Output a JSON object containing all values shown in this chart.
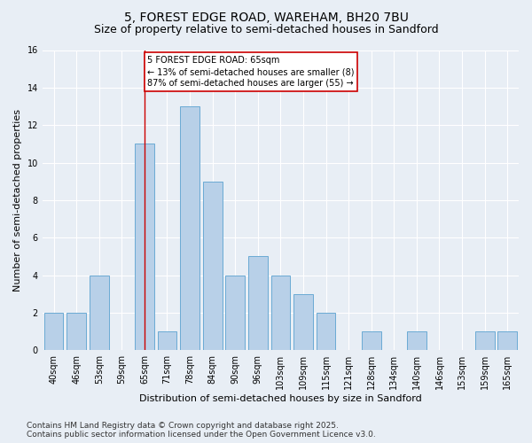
{
  "title1": "5, FOREST EDGE ROAD, WAREHAM, BH20 7BU",
  "title2": "Size of property relative to semi-detached houses in Sandford",
  "xlabel": "Distribution of semi-detached houses by size in Sandford",
  "ylabel": "Number of semi-detached properties",
  "categories": [
    "40sqm",
    "46sqm",
    "53sqm",
    "59sqm",
    "65sqm",
    "71sqm",
    "78sqm",
    "84sqm",
    "90sqm",
    "96sqm",
    "103sqm",
    "109sqm",
    "115sqm",
    "121sqm",
    "128sqm",
    "134sqm",
    "140sqm",
    "146sqm",
    "153sqm",
    "159sqm",
    "165sqm"
  ],
  "values": [
    2,
    2,
    4,
    0,
    11,
    1,
    13,
    9,
    4,
    5,
    4,
    3,
    2,
    0,
    1,
    0,
    1,
    0,
    0,
    1,
    1
  ],
  "bar_color": "#b8d0e8",
  "bar_edge_color": "#6aaad4",
  "highlight_bar_index": 4,
  "highlight_color": "#cc0000",
  "annotation_title": "5 FOREST EDGE ROAD: 65sqm",
  "annotation_line1": "← 13% of semi-detached houses are smaller (8)",
  "annotation_line2": "87% of semi-detached houses are larger (55) →",
  "annotation_box_color": "#ffffff",
  "annotation_box_edge_color": "#cc0000",
  "ylim": [
    0,
    16
  ],
  "yticks": [
    0,
    2,
    4,
    6,
    8,
    10,
    12,
    14,
    16
  ],
  "footer_line1": "Contains HM Land Registry data © Crown copyright and database right 2025.",
  "footer_line2": "Contains public sector information licensed under the Open Government Licence v3.0.",
  "bg_color": "#e8eef5",
  "plot_bg_color": "#e8eef5",
  "grid_color": "#ffffff",
  "title_fontsize": 10,
  "subtitle_fontsize": 9,
  "tick_fontsize": 7,
  "ylabel_fontsize": 8,
  "xlabel_fontsize": 8,
  "annotation_fontsize": 7,
  "footer_fontsize": 6.5
}
